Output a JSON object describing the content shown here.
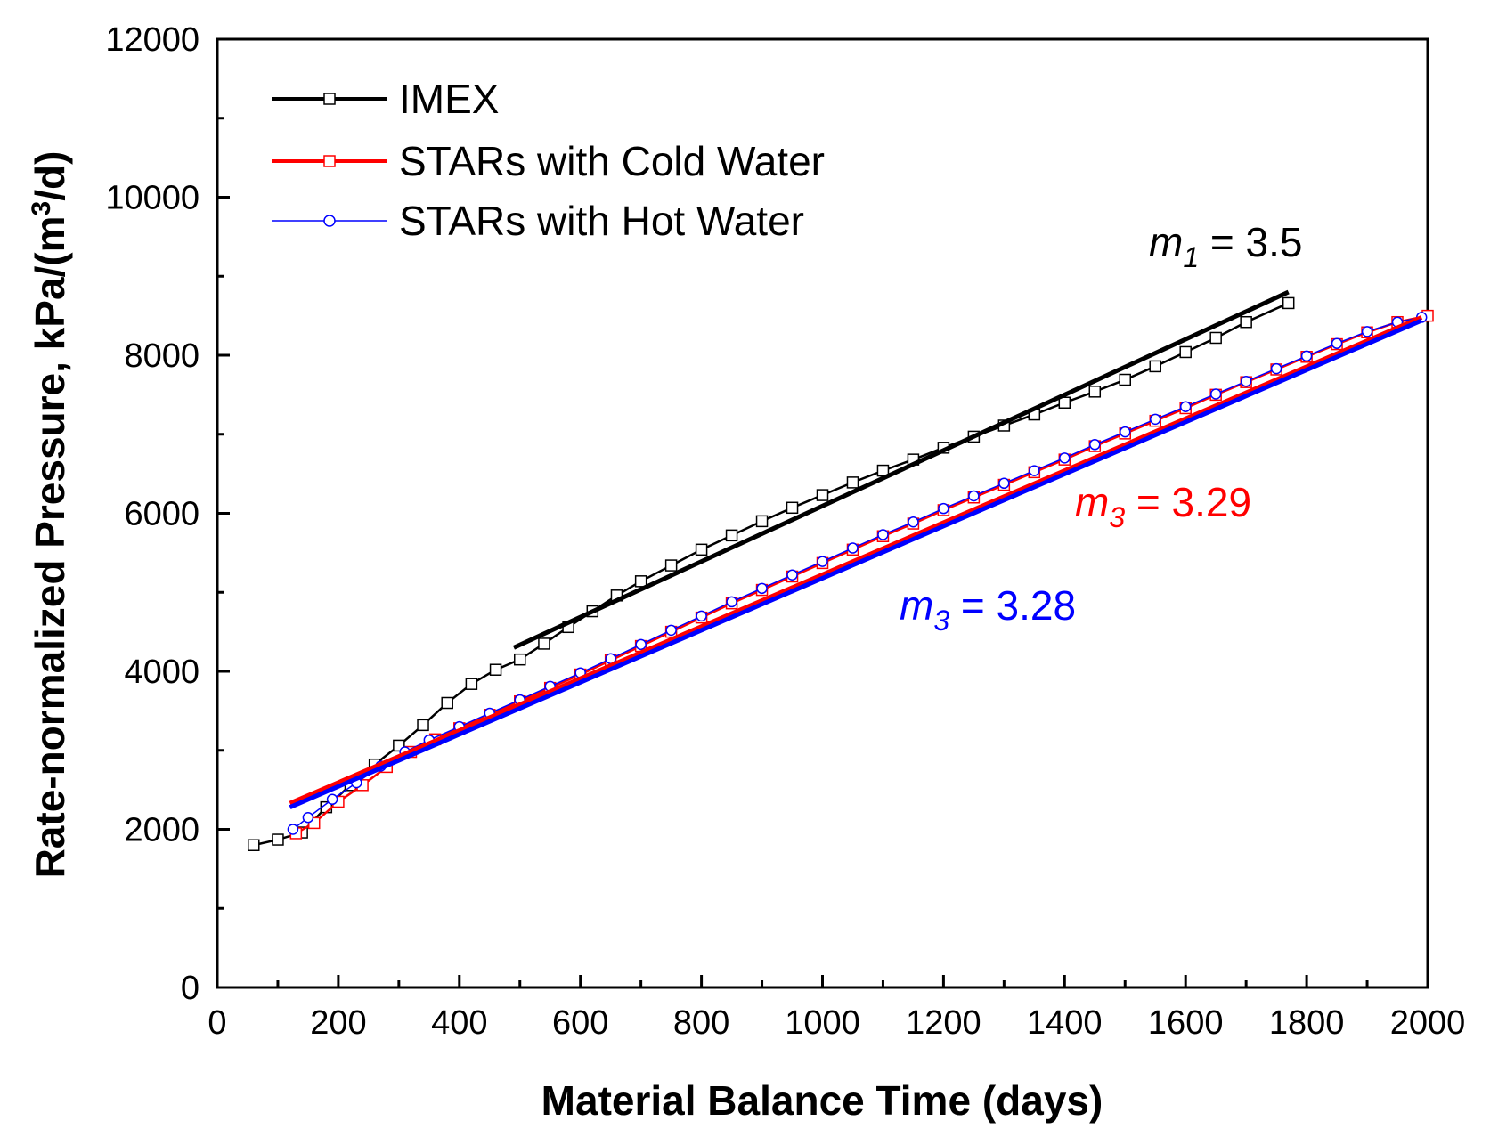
{
  "chart_data": {
    "type": "scatter",
    "xlabel": "Material Balance Time (days)",
    "ylabel_main": "Rate-normalized Pressure, kPa/(m",
    "ylabel_sup": "3",
    "ylabel_end": "/d)",
    "xlim": [
      0,
      2000
    ],
    "ylim": [
      0,
      12000
    ],
    "x_ticks": [
      0,
      200,
      400,
      600,
      800,
      1000,
      1200,
      1400,
      1600,
      1800,
      2000
    ],
    "y_ticks": [
      0,
      2000,
      4000,
      6000,
      8000,
      10000,
      12000
    ],
    "grid": false,
    "legend_position": "top-left",
    "colors": {
      "imex": "#000000",
      "cold": "#ff0000",
      "hot": "#0000ff"
    },
    "series": [
      {
        "name": "IMEX",
        "color": "#000000",
        "marker": "square",
        "points": [
          [
            60,
            1800
          ],
          [
            100,
            1870
          ],
          [
            140,
            1960
          ],
          [
            180,
            2280
          ],
          [
            220,
            2560
          ],
          [
            260,
            2820
          ],
          [
            300,
            3060
          ],
          [
            340,
            3320
          ],
          [
            380,
            3600
          ],
          [
            420,
            3840
          ],
          [
            460,
            4020
          ],
          [
            500,
            4150
          ],
          [
            540,
            4350
          ],
          [
            580,
            4560
          ],
          [
            620,
            4760
          ],
          [
            660,
            4960
          ],
          [
            700,
            5140
          ],
          [
            750,
            5340
          ],
          [
            800,
            5540
          ],
          [
            850,
            5720
          ],
          [
            900,
            5900
          ],
          [
            950,
            6070
          ],
          [
            1000,
            6230
          ],
          [
            1050,
            6390
          ],
          [
            1100,
            6540
          ],
          [
            1150,
            6680
          ],
          [
            1200,
            6830
          ],
          [
            1250,
            6970
          ],
          [
            1300,
            7110
          ],
          [
            1350,
            7250
          ],
          [
            1400,
            7400
          ],
          [
            1450,
            7540
          ],
          [
            1500,
            7690
          ],
          [
            1550,
            7860
          ],
          [
            1600,
            8040
          ],
          [
            1650,
            8220
          ],
          [
            1700,
            8420
          ],
          [
            1770,
            8660
          ]
        ]
      },
      {
        "name": "STARs with Cold Water",
        "color": "#ff0000",
        "marker": "square",
        "points": [
          [
            130,
            1950
          ],
          [
            160,
            2080
          ],
          [
            200,
            2350
          ],
          [
            240,
            2560
          ],
          [
            280,
            2790
          ],
          [
            320,
            2980
          ],
          [
            360,
            3140
          ],
          [
            400,
            3280
          ],
          [
            450,
            3450
          ],
          [
            500,
            3620
          ],
          [
            550,
            3790
          ],
          [
            600,
            3960
          ],
          [
            650,
            4140
          ],
          [
            700,
            4320
          ],
          [
            750,
            4500
          ],
          [
            800,
            4680
          ],
          [
            850,
            4860
          ],
          [
            900,
            5030
          ],
          [
            950,
            5200
          ],
          [
            1000,
            5370
          ],
          [
            1050,
            5540
          ],
          [
            1100,
            5710
          ],
          [
            1150,
            5870
          ],
          [
            1200,
            6040
          ],
          [
            1250,
            6200
          ],
          [
            1300,
            6360
          ],
          [
            1350,
            6520
          ],
          [
            1400,
            6680
          ],
          [
            1450,
            6850
          ],
          [
            1500,
            7010
          ],
          [
            1550,
            7170
          ],
          [
            1600,
            7330
          ],
          [
            1650,
            7500
          ],
          [
            1700,
            7660
          ],
          [
            1750,
            7820
          ],
          [
            1800,
            7980
          ],
          [
            1850,
            8140
          ],
          [
            1900,
            8290
          ],
          [
            1950,
            8420
          ],
          [
            2000,
            8500
          ]
        ]
      },
      {
        "name": "STARs with Hot Water",
        "color": "#0000ff",
        "marker": "circle",
        "points": [
          [
            125,
            2000
          ],
          [
            150,
            2150
          ],
          [
            190,
            2380
          ],
          [
            230,
            2590
          ],
          [
            270,
            2800
          ],
          [
            310,
            2980
          ],
          [
            350,
            3130
          ],
          [
            400,
            3300
          ],
          [
            450,
            3470
          ],
          [
            500,
            3640
          ],
          [
            550,
            3810
          ],
          [
            600,
            3980
          ],
          [
            650,
            4160
          ],
          [
            700,
            4340
          ],
          [
            750,
            4520
          ],
          [
            800,
            4700
          ],
          [
            850,
            4880
          ],
          [
            900,
            5050
          ],
          [
            950,
            5220
          ],
          [
            1000,
            5390
          ],
          [
            1050,
            5560
          ],
          [
            1100,
            5730
          ],
          [
            1150,
            5890
          ],
          [
            1200,
            6060
          ],
          [
            1250,
            6220
          ],
          [
            1300,
            6380
          ],
          [
            1350,
            6540
          ],
          [
            1400,
            6700
          ],
          [
            1450,
            6870
          ],
          [
            1500,
            7030
          ],
          [
            1550,
            7190
          ],
          [
            1600,
            7350
          ],
          [
            1650,
            7510
          ],
          [
            1700,
            7670
          ],
          [
            1750,
            7830
          ],
          [
            1800,
            7990
          ],
          [
            1850,
            8150
          ],
          [
            1900,
            8300
          ],
          [
            1950,
            8420
          ],
          [
            1990,
            8480
          ]
        ]
      }
    ],
    "fit_lines": [
      {
        "key": "m1",
        "color": "#000000",
        "from": [
          490,
          4300
        ],
        "to": [
          1770,
          8800
        ]
      },
      {
        "key": "cold",
        "color": "#ff0000",
        "from": [
          120,
          2330
        ],
        "to": [
          1990,
          8480
        ]
      },
      {
        "key": "hot",
        "color": "#0000ff",
        "from": [
          120,
          2280
        ],
        "to": [
          1990,
          8440
        ]
      }
    ],
    "annotations": [
      {
        "sym": "m",
        "sub": "1",
        "text": " = 3.5",
        "color": "#000000",
        "italic_sym": true
      },
      {
        "sym": "m",
        "sub": "3",
        "text": " = 3.29",
        "color": "#ff0000",
        "italic_sym": true
      },
      {
        "sym": "m",
        "sub": "3",
        "text": " = 3.28",
        "color": "#0000ff",
        "italic_sym": true
      }
    ]
  }
}
